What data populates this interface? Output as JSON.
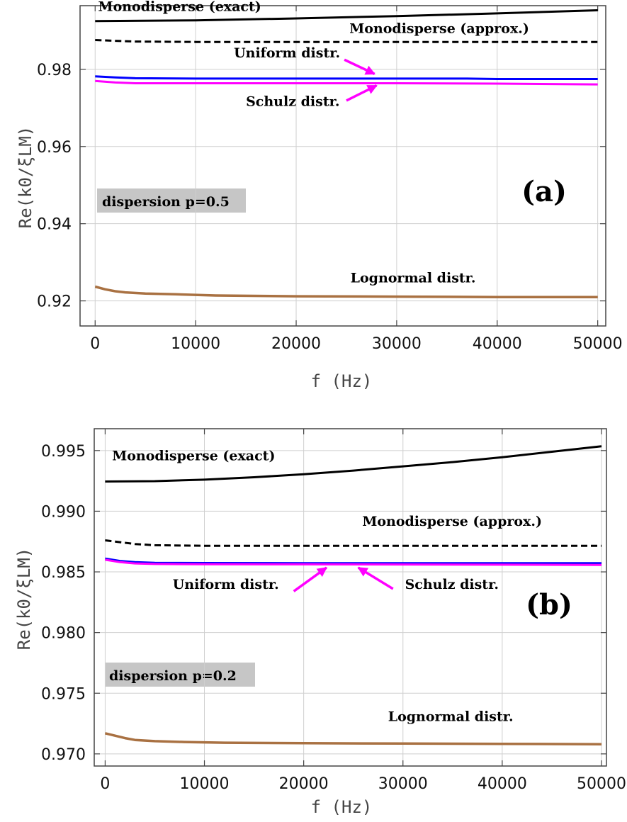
{
  "chart_data": [
    {
      "type": "line",
      "panel_label": "(a)",
      "annotation": "dispersion p=0.5",
      "xlabel": "f (Hz)",
      "ylabel": "Re(k0/ξLM)",
      "xlim": [
        -1500,
        50800
      ],
      "ylim": [
        0.9135,
        0.9965
      ],
      "xticks": [
        0,
        10000,
        20000,
        30000,
        40000,
        50000
      ],
      "xtick_labels": [
        "0",
        "10000",
        "20000",
        "30000",
        "40000",
        "50000"
      ],
      "yticks": [
        0.92,
        0.94,
        0.96,
        0.98
      ],
      "ytick_labels": [
        "0.92",
        "0.94",
        "0.96",
        "0.98"
      ],
      "grid": true,
      "series": [
        {
          "name": "Monodisperse (exact)",
          "color": "#000000",
          "dash": "solid",
          "x": [
            0,
            10000,
            20000,
            30000,
            40000,
            50000
          ],
          "y": [
            0.9925,
            0.9927,
            0.9932,
            0.9938,
            0.9945,
            0.9953
          ]
        },
        {
          "name": "Monodisperse (approx.)",
          "color": "#000000",
          "dash": "dashed",
          "x": [
            0,
            2000,
            4000,
            10000,
            20000,
            30000,
            40000,
            50000
          ],
          "y": [
            0.9876,
            0.9874,
            0.9872,
            0.9871,
            0.9871,
            0.9871,
            0.9871,
            0.9871
          ]
        },
        {
          "name": "Uniform distr.",
          "color": "#0000ff",
          "dash": "solid",
          "x": [
            0,
            2000,
            4000,
            10000,
            20000,
            30000,
            37000,
            40000,
            50000
          ],
          "y": [
            0.9782,
            0.9779,
            0.9777,
            0.9776,
            0.9776,
            0.9776,
            0.9776,
            0.9775,
            0.9775
          ]
        },
        {
          "name": "Schulz distr.",
          "color": "#ff00ff",
          "dash": "solid",
          "x": [
            0,
            2000,
            4000,
            10000,
            20000,
            30000,
            40000,
            50000
          ],
          "y": [
            0.977,
            0.9766,
            0.9764,
            0.9764,
            0.9764,
            0.9764,
            0.9763,
            0.9761
          ]
        },
        {
          "name": "Lognormal distr.",
          "color": "#a97142",
          "dash": "solid",
          "x": [
            0,
            1000,
            2000,
            3000,
            5000,
            8000,
            12000,
            20000,
            30000,
            40000,
            50000
          ],
          "y": [
            0.9237,
            0.923,
            0.9225,
            0.9222,
            0.9219,
            0.9217,
            0.9214,
            0.9212,
            0.9211,
            0.921,
            0.921
          ]
        }
      ],
      "labels": [
        {
          "text": "Monodisperse (exact)",
          "x": 300,
          "y": 0.9951
        },
        {
          "text": "Monodisperse (approx.)",
          "x": 25300,
          "y": 0.9894
        },
        {
          "text": "Uniform distr.",
          "x": 13800,
          "y": 0.9831
        },
        {
          "text": "Schulz distr.",
          "x": 15000,
          "y": 0.9705
        },
        {
          "text": "Lognormal distr.",
          "x": 25400,
          "y": 0.9248
        }
      ],
      "arrows": [
        {
          "from": [
            24800,
            0.9825
          ],
          "to": [
            27800,
            0.9788
          ]
        },
        {
          "from": [
            25000,
            0.9719
          ],
          "to": [
            28000,
            0.9758
          ]
        }
      ]
    },
    {
      "type": "line",
      "panel_label": "(b)",
      "annotation": "dispersion p=0.2",
      "xlabel": "f (Hz)",
      "ylabel": "Re(k0/ξLM)",
      "xlim": [
        -1100,
        50500
      ],
      "ylim": [
        0.969,
        0.9968
      ],
      "xticks": [
        0,
        10000,
        20000,
        30000,
        40000,
        50000
      ],
      "xtick_labels": [
        "0",
        "10000",
        "20000",
        "30000",
        "40000",
        "50000"
      ],
      "yticks": [
        0.97,
        0.975,
        0.98,
        0.985,
        0.99,
        0.995
      ],
      "ytick_labels": [
        "0.970",
        "0.975",
        "0.980",
        "0.985",
        "0.990",
        "0.995"
      ],
      "grid": true,
      "series": [
        {
          "name": "Monodisperse (exact)",
          "color": "#000000",
          "dash": "solid",
          "x": [
            0,
            5000,
            10000,
            15000,
            20000,
            25000,
            30000,
            35000,
            40000,
            45000,
            50000
          ],
          "y": [
            0.99245,
            0.99248,
            0.9926,
            0.9928,
            0.99305,
            0.99335,
            0.9937,
            0.99405,
            0.99445,
            0.9949,
            0.99535
          ]
        },
        {
          "name": "Monodisperse (approx.)",
          "color": "#000000",
          "dash": "dashed",
          "x": [
            0,
            1500,
            3000,
            5000,
            10000,
            20000,
            30000,
            40000,
            50000
          ],
          "y": [
            0.9876,
            0.98745,
            0.9873,
            0.9872,
            0.98715,
            0.98715,
            0.98715,
            0.98715,
            0.98715
          ]
        },
        {
          "name": "Uniform distr.",
          "color": "#0000ff",
          "dash": "solid",
          "x": [
            0,
            1500,
            3000,
            5000,
            10000,
            20000,
            30000,
            40000,
            50000
          ],
          "y": [
            0.9861,
            0.9859,
            0.9858,
            0.98575,
            0.98573,
            0.98572,
            0.98572,
            0.98572,
            0.98572
          ]
        },
        {
          "name": "Schulz distr.",
          "color": "#ff00ff",
          "dash": "solid",
          "x": [
            0,
            1500,
            3000,
            5000,
            10000,
            20000,
            30000,
            40000,
            50000
          ],
          "y": [
            0.986,
            0.9858,
            0.9857,
            0.98565,
            0.98563,
            0.98562,
            0.98561,
            0.98559,
            0.98557
          ]
        },
        {
          "name": "Lognormal distr.",
          "color": "#a97142",
          "dash": "solid",
          "x": [
            0,
            1000,
            2000,
            3000,
            5000,
            8000,
            12000,
            20000,
            30000,
            40000,
            50000
          ],
          "y": [
            0.9717,
            0.9715,
            0.9713,
            0.97115,
            0.97105,
            0.97098,
            0.97092,
            0.97088,
            0.97085,
            0.97083,
            0.9708
          ]
        }
      ],
      "labels": [
        {
          "text": "Monodisperse (exact)",
          "x": 700,
          "y": 0.9942
        },
        {
          "text": "Monodisperse (approx.)",
          "x": 25900,
          "y": 0.9888
        },
        {
          "text": "Uniform distr.",
          "x": 6800,
          "y": 0.9836
        },
        {
          "text": "Schulz distr.",
          "x": 30200,
          "y": 0.9836
        },
        {
          "text": "Lognormal distr.",
          "x": 28500,
          "y": 0.9727
        }
      ],
      "arrows": [
        {
          "from": [
            19000,
            0.9834
          ],
          "to": [
            22300,
            0.98535
          ]
        },
        {
          "from": [
            29000,
            0.9836
          ],
          "to": [
            25500,
            0.98535
          ]
        }
      ]
    }
  ]
}
